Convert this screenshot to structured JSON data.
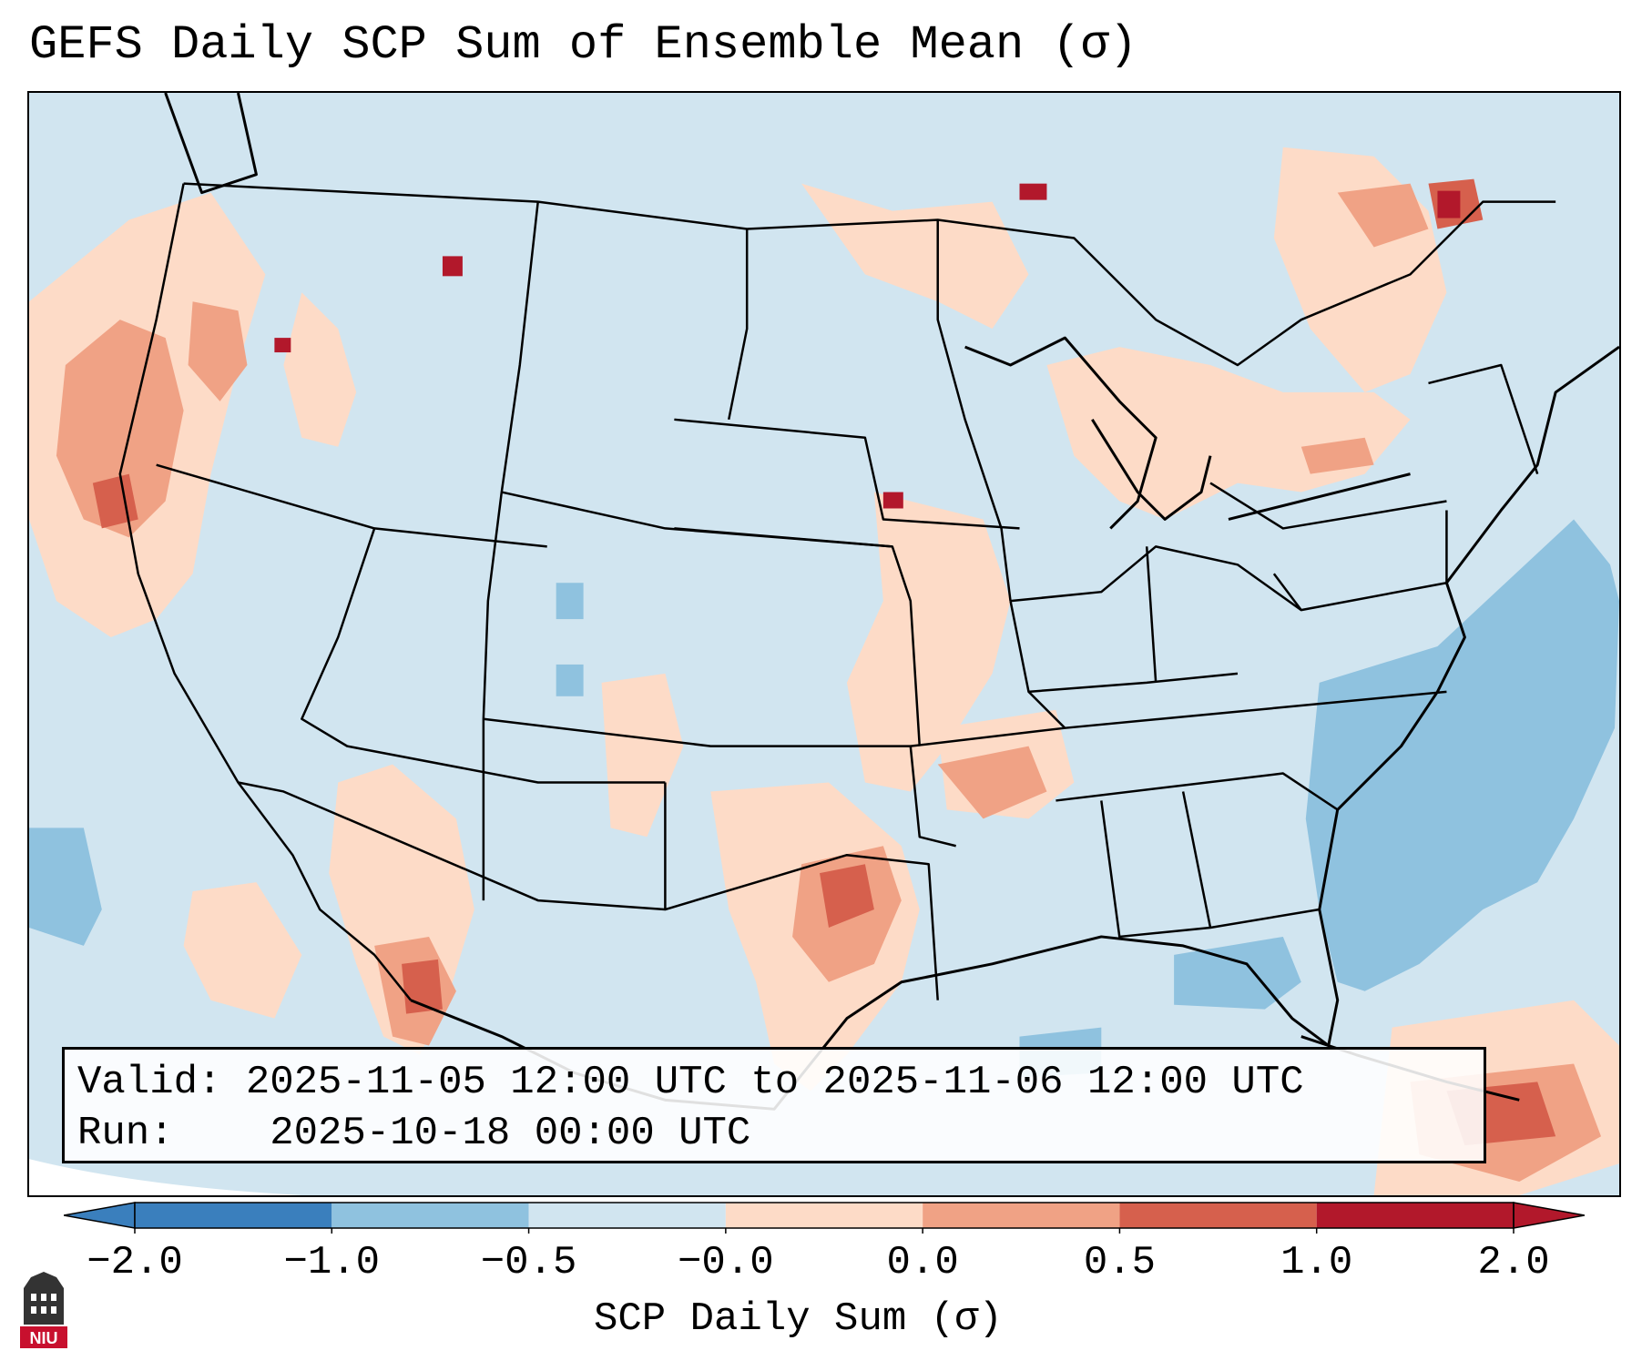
{
  "title": "GEFS Daily SCP Sum of Ensemble Mean (σ)",
  "info": {
    "valid_label": "Valid:",
    "valid_value": "2025-11-05 12:00 UTC to 2025-11-06 12:00 UTC",
    "run_label": "Run:",
    "run_value": "2025-10-18 00:00 UTC"
  },
  "colorbar": {
    "label": "SCP Daily Sum (σ)",
    "ticks": [
      "−2.0",
      "−1.0",
      "−0.5",
      "−0.0",
      "0.0",
      "0.5",
      "1.0",
      "2.0"
    ],
    "colors": [
      "#3a7fbd",
      "#8fc2df",
      "#d1e5f0",
      "#f7f7f7",
      "#fddbc7",
      "#f0a285",
      "#d6604d",
      "#b2182b"
    ]
  },
  "logo": {
    "text": "NIU",
    "color": "#c8102e"
  },
  "map_colors": {
    "background": "#d1e5f0",
    "light_red": "#fddbc7",
    "mid_red": "#f0a285",
    "dark_red": "#d6604d",
    "deep_red": "#b2182b",
    "light_blue": "#8fc2df"
  }
}
